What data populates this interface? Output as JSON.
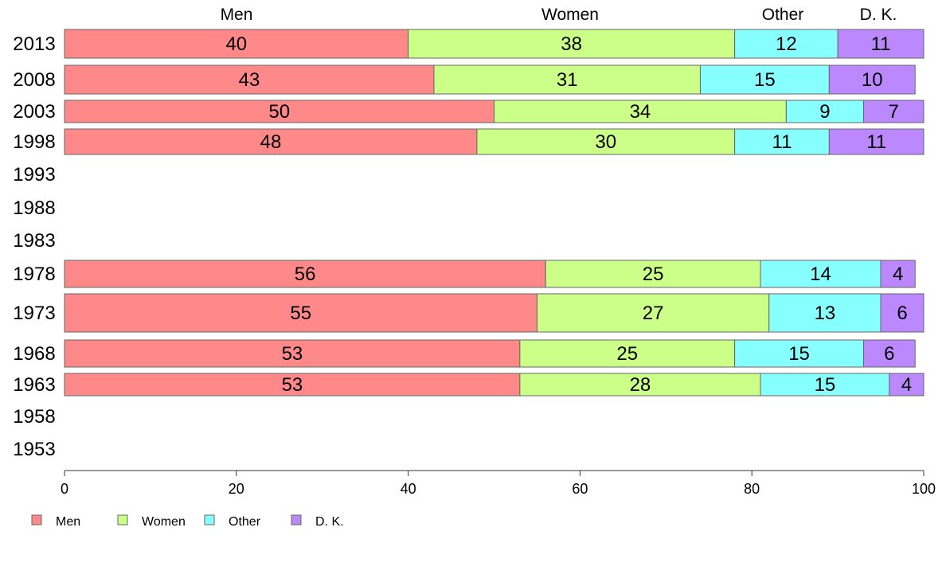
{
  "chart_data": {
    "type": "bar",
    "orientation": "horizontal",
    "stacked": true,
    "categories": [
      "2013",
      "2008",
      "2003",
      "1998",
      "1993",
      "1988",
      "1983",
      "1978",
      "1973",
      "1968",
      "1963",
      "1958",
      "1953"
    ],
    "series": [
      {
        "name": "Men",
        "color": "#ff8888",
        "values": [
          40,
          43,
          50,
          48,
          null,
          null,
          null,
          56,
          55,
          53,
          53,
          null,
          null
        ]
      },
      {
        "name": "Women",
        "color": "#ccff88",
        "values": [
          38,
          31,
          34,
          30,
          null,
          null,
          null,
          25,
          27,
          25,
          28,
          null,
          null
        ]
      },
      {
        "name": "Other",
        "color": "#88ffff",
        "values": [
          12,
          15,
          9,
          11,
          null,
          null,
          null,
          14,
          13,
          15,
          15,
          null,
          null
        ]
      },
      {
        "name": "D. K.",
        "color": "#bb88ff",
        "values": [
          11,
          10,
          7,
          11,
          null,
          null,
          null,
          4,
          6,
          6,
          4,
          null,
          null
        ]
      }
    ],
    "x_ticks": [
      "0",
      "20",
      "40",
      "60",
      "80",
      "100"
    ],
    "xlim": [
      0,
      100
    ],
    "grid": false,
    "legend_position": "bottom-left",
    "column_headers": [
      "Men",
      "Women",
      "Other",
      "D. K."
    ]
  }
}
